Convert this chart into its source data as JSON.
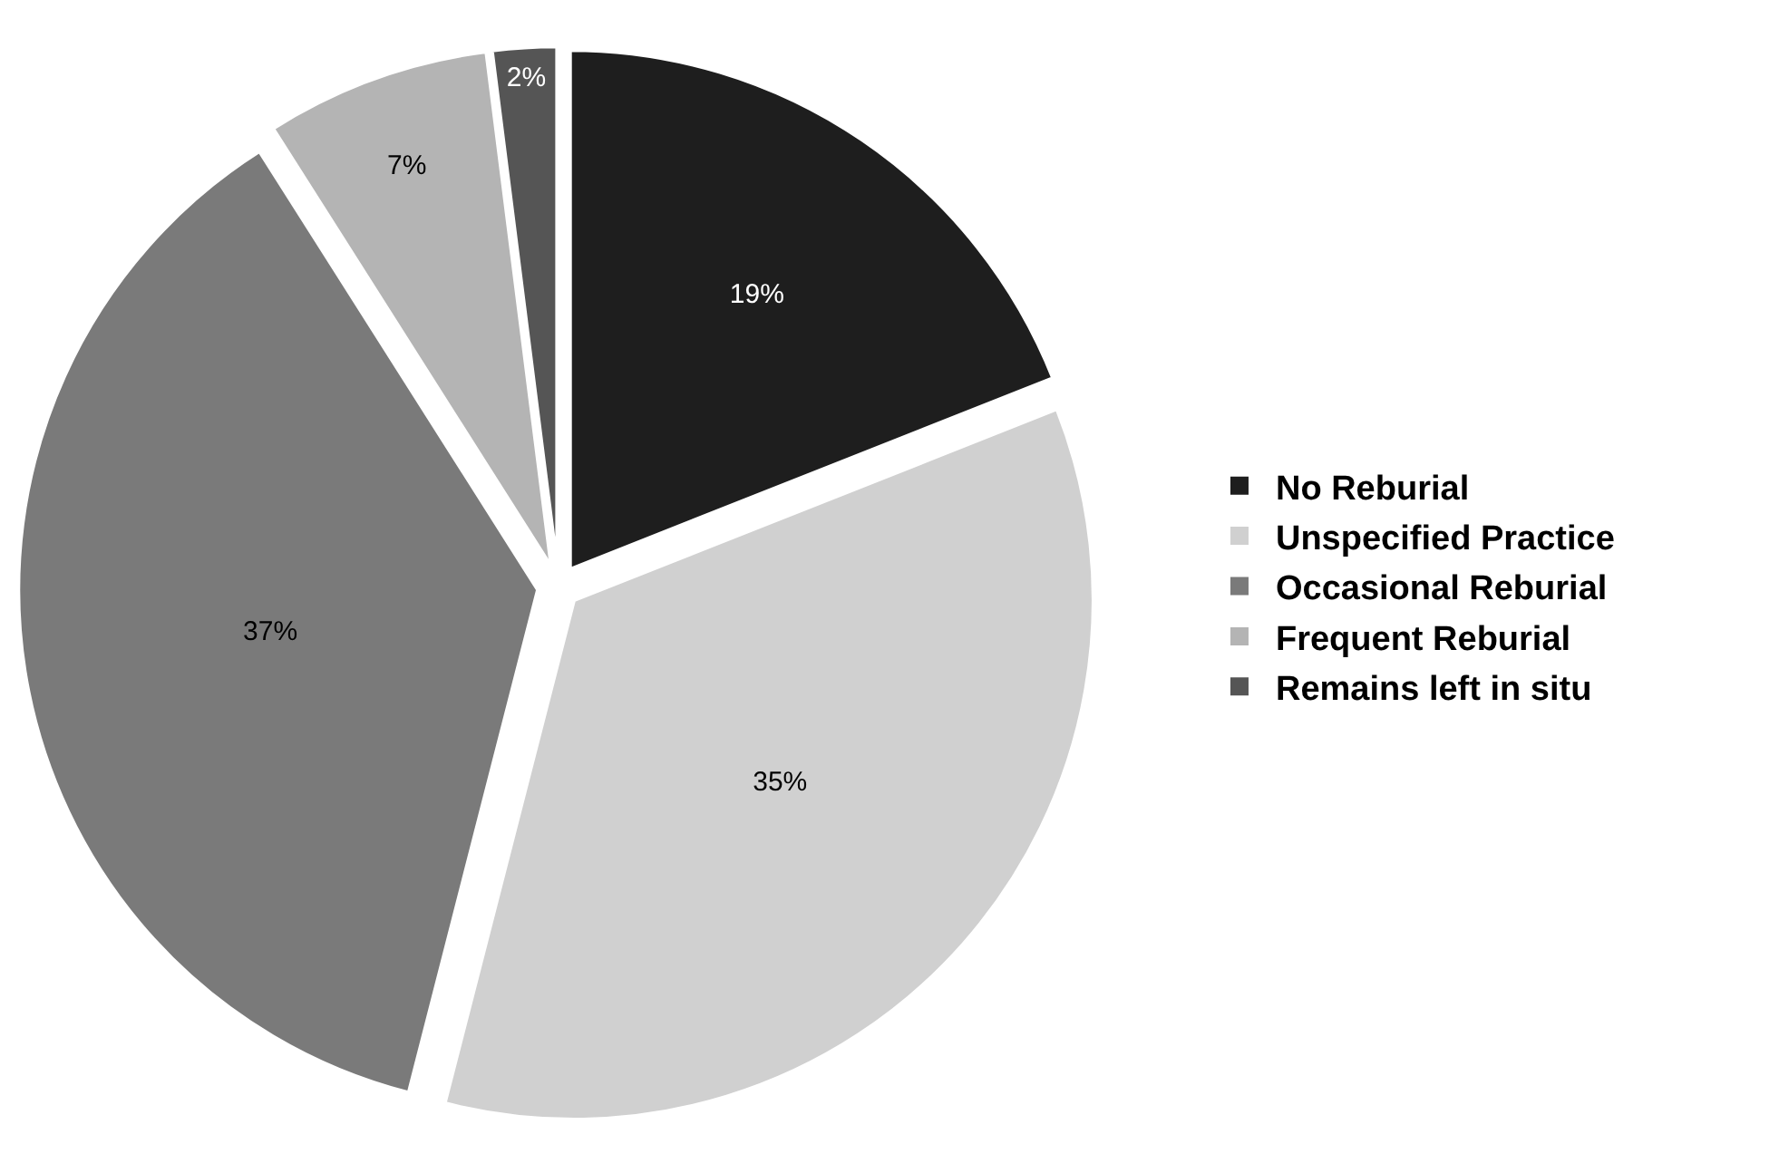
{
  "chart_data": {
    "type": "pie",
    "categories": [
      "No Reburial",
      "Unspecified Practice",
      "Occasional Reburial",
      "Frequent Reburial",
      "Remains left in situ"
    ],
    "values": [
      19,
      35,
      37,
      7,
      2
    ],
    "colors": [
      "#1e1e1e",
      "#d0d0d0",
      "#7a7a7a",
      "#b4b4b4",
      "#555555"
    ],
    "value_labels": [
      "19%",
      "35%",
      "37%",
      "7%",
      "2%"
    ],
    "legend": "right"
  }
}
